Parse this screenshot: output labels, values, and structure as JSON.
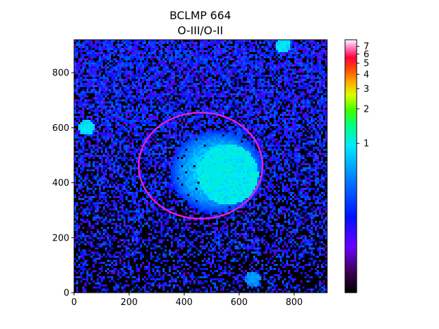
{
  "chart_data": {
    "type": "heatmap",
    "title": "BCLMP 664",
    "subtitle": "O-III/O-II",
    "x_ticks": [
      0,
      200,
      400,
      600,
      800
    ],
    "y_ticks": [
      0,
      200,
      400,
      600,
      800
    ],
    "xlim": [
      0,
      920
    ],
    "ylim": [
      0,
      920
    ],
    "colormap": "gist_ncar-like (black-purple-blue-cyan-green-yellow-orange-red-pink-white)",
    "colorbar_ticks": [
      "1",
      "2",
      "3",
      "4",
      "5",
      "6",
      "7"
    ],
    "colorbar_tick_values": [
      1,
      2,
      3,
      4,
      5,
      6,
      7
    ],
    "colorbar_range": [
      0.05,
      8
    ],
    "colorbar_scale": "log",
    "regions": [
      {
        "description": "bright green nebula core",
        "x": 560,
        "y": 430,
        "value": 1.1
      },
      {
        "description": "green compact knot",
        "x": 45,
        "y": 600,
        "value": 1.0
      },
      {
        "description": "green emission top-right",
        "x": 760,
        "y": 900,
        "value": 1.0
      },
      {
        "description": "cyan blob bottom",
        "x": 650,
        "y": 50,
        "value": 0.6
      }
    ],
    "ellipse": {
      "center_x": 460,
      "center_y": 462,
      "semi_x": 225,
      "semi_y": 193,
      "color": "#e020e0"
    },
    "noise_mean_value": 0.25
  }
}
